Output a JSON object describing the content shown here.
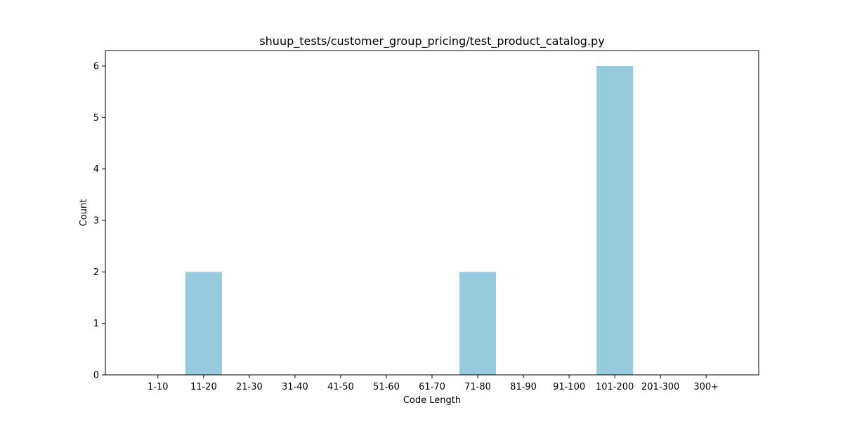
{
  "chart_data": {
    "type": "bar",
    "title": "shuup_tests/customer_group_pricing/test_product_catalog.py",
    "xlabel": "Code Length",
    "ylabel": "Count",
    "categories": [
      "1-10",
      "11-20",
      "21-30",
      "31-40",
      "41-50",
      "51-60",
      "61-70",
      "71-80",
      "81-90",
      "91-100",
      "101-200",
      "201-300",
      "300+"
    ],
    "values": [
      0,
      2,
      0,
      0,
      0,
      0,
      0,
      2,
      0,
      0,
      6,
      0,
      0
    ],
    "ylim": [
      0,
      6.3
    ],
    "yticks": [
      0,
      1,
      2,
      3,
      4,
      5,
      6
    ],
    "bar_color": "#96cadd",
    "grid": false,
    "legend": "none"
  }
}
